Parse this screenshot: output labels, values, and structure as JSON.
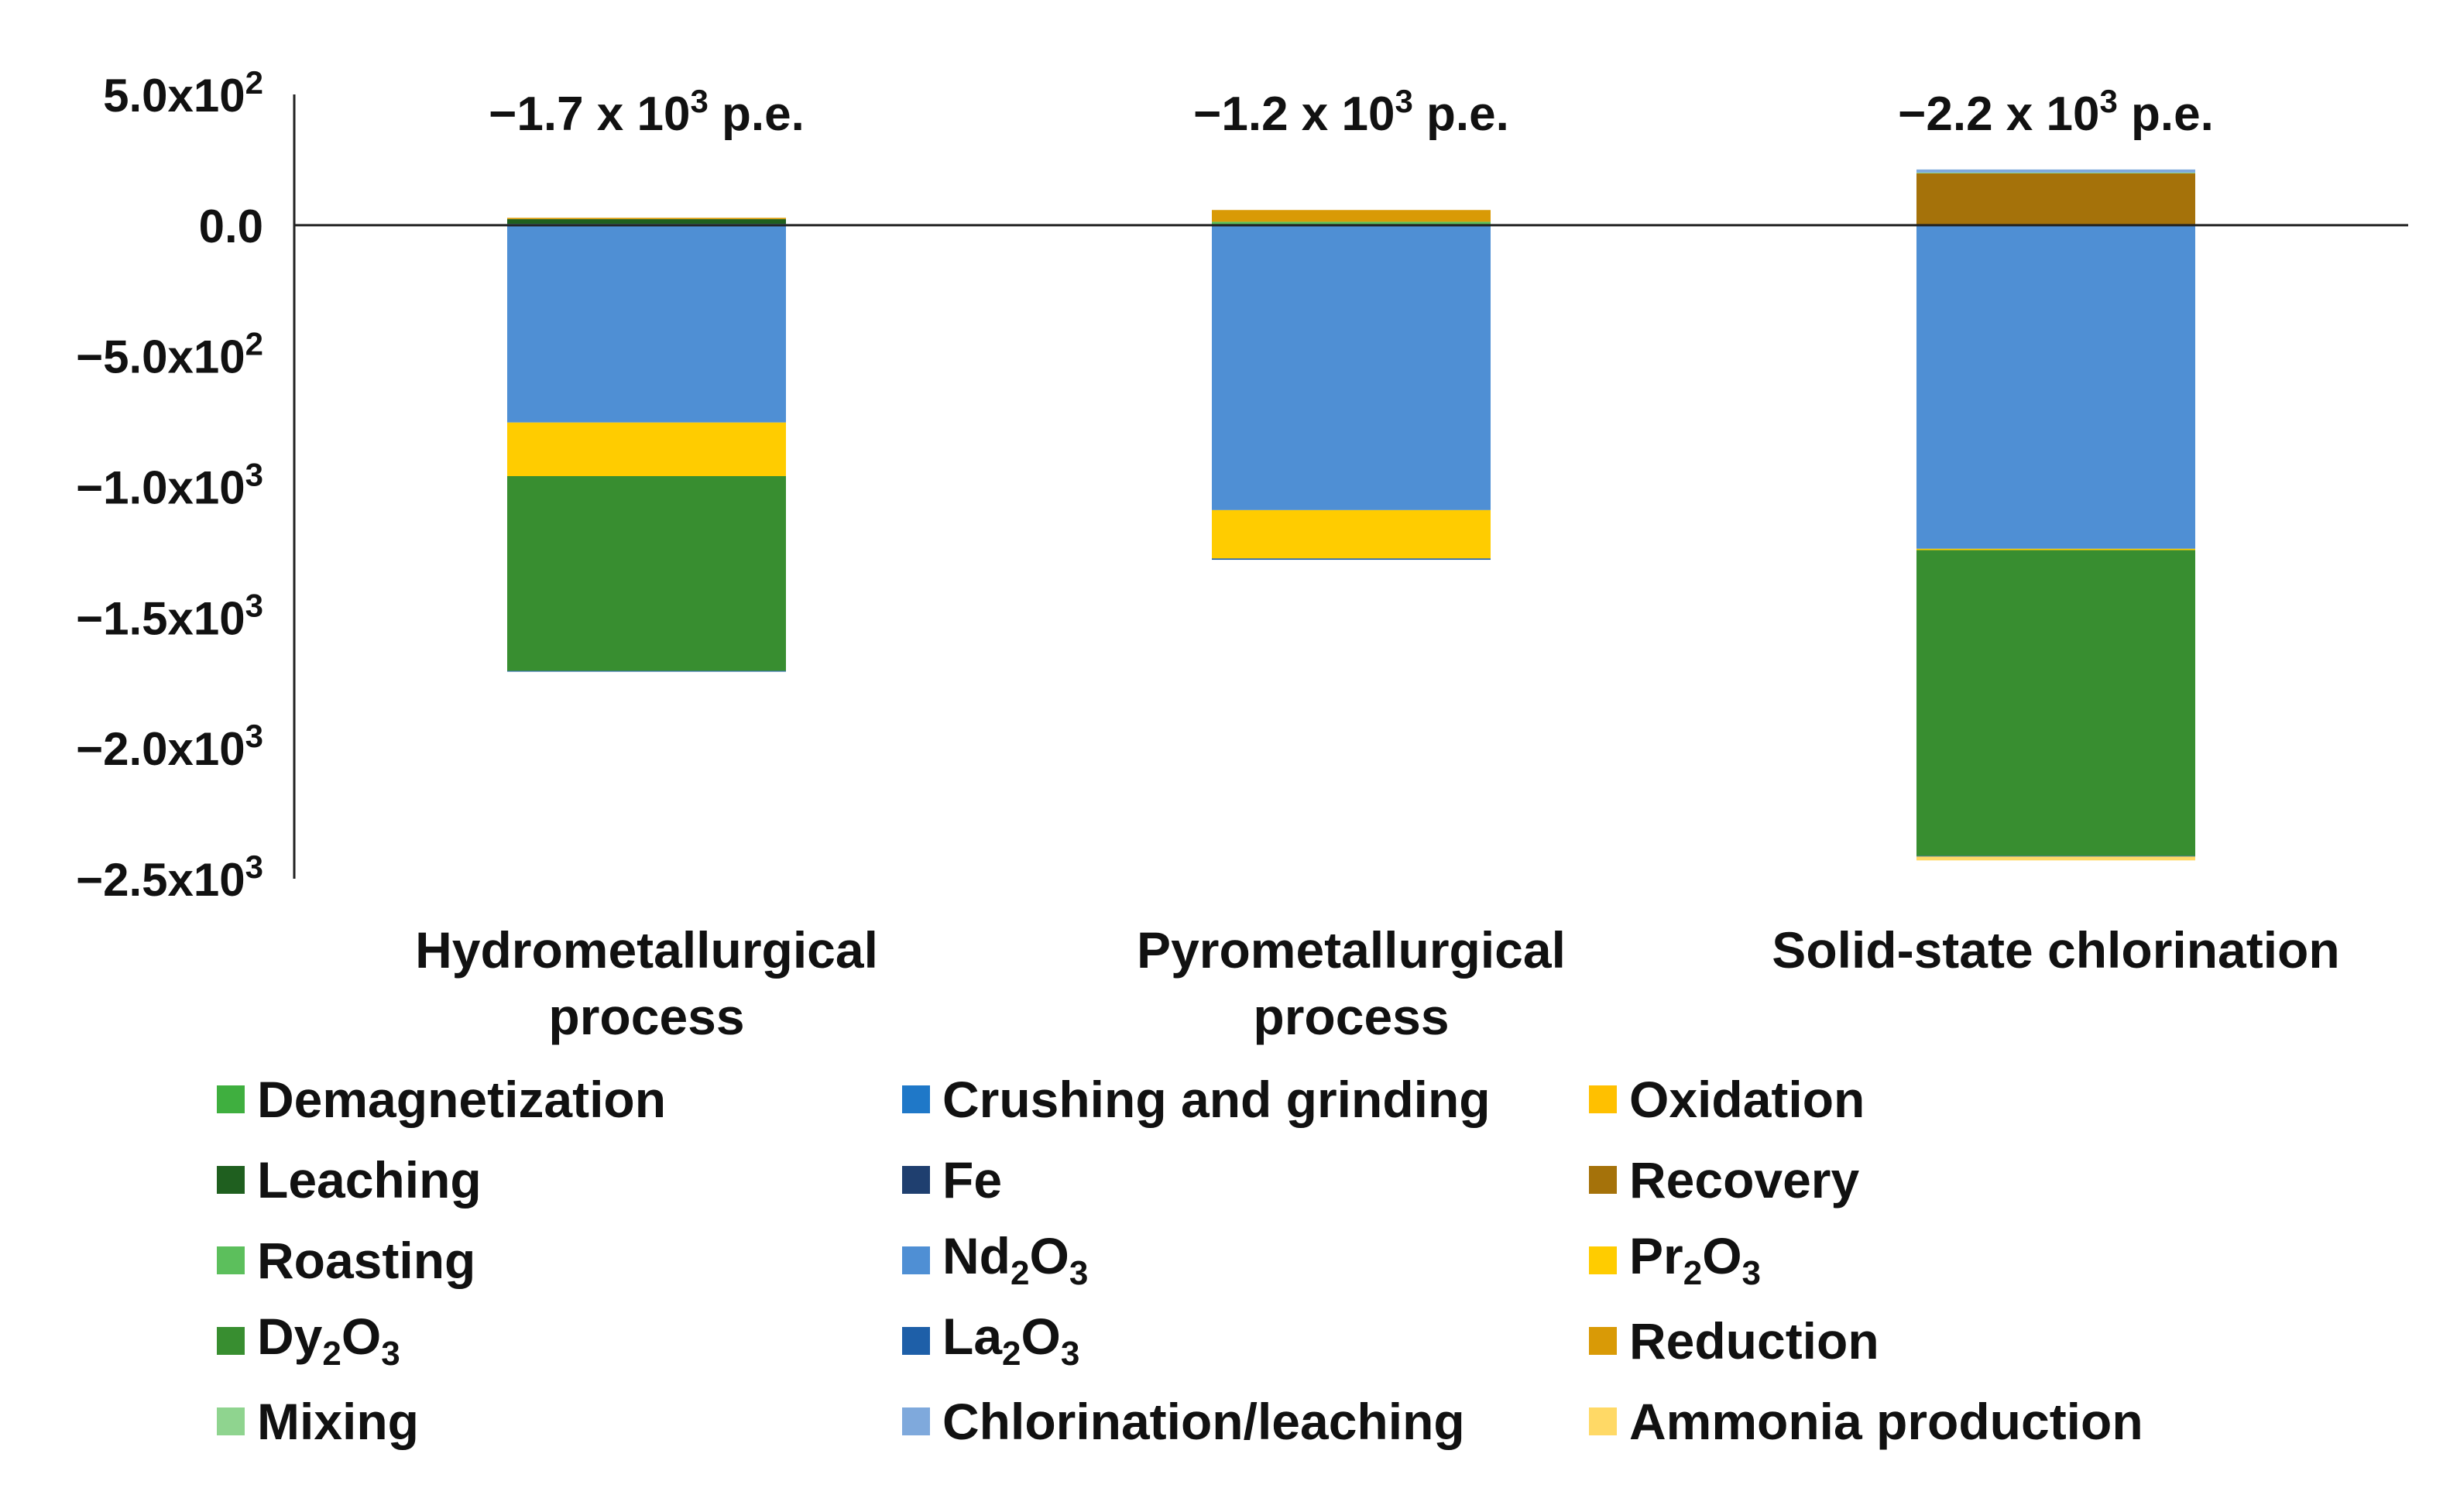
{
  "chart_data": {
    "type": "stacked-bar",
    "ylim": [
      -2500,
      500
    ],
    "y_ticks": [
      {
        "value": 500,
        "label": "5.0x10",
        "exp": "2"
      },
      {
        "value": 0,
        "label": "0.0",
        "exp": ""
      },
      {
        "value": -500,
        "label": "−5.0x10",
        "exp": "2"
      },
      {
        "value": -1000,
        "label": "−1.0x10",
        "exp": "3"
      },
      {
        "value": -1500,
        "label": "−1.5x10",
        "exp": "3"
      },
      {
        "value": -2000,
        "label": "−2.0x10",
        "exp": "3"
      },
      {
        "value": -2500,
        "label": "−2.5x10",
        "exp": "3"
      }
    ],
    "categories": [
      {
        "lines": [
          "Hydrometallurgical",
          "process"
        ],
        "total": {
          "prefix": "−1.7 x 10",
          "exp": "3",
          "suffix": " p.e."
        }
      },
      {
        "lines": [
          "Pyrometallurgical",
          "process"
        ],
        "total": {
          "prefix": "−1.2 x 10",
          "exp": "3",
          "suffix": " p.e."
        }
      },
      {
        "lines": [
          "Solid-state chlorination"
        ],
        "total": {
          "prefix": "−2.2 x 10",
          "exp": "3",
          "suffix": " p.e."
        }
      }
    ],
    "series": [
      {
        "name": "Demagnetization",
        "color": "#3FAF3F",
        "values": [
          2,
          0,
          0
        ]
      },
      {
        "name": "Crushing and grinding",
        "color": "#1F78C8",
        "values": [
          3,
          3,
          3
        ]
      },
      {
        "name": "Oxidation",
        "color": "#FFC000",
        "values": [
          0,
          0,
          0
        ]
      },
      {
        "name": "Leaching",
        "color": "#1F5F1F",
        "values": [
          18,
          0,
          0
        ]
      },
      {
        "name": "Fe",
        "color": "#1F3F6F",
        "values": [
          -5,
          -5,
          -3
        ]
      },
      {
        "name": "Recovery",
        "color": "#A5720A",
        "values": [
          0,
          0,
          195
        ]
      },
      {
        "name": "Roasting",
        "color": "#5CBF5C",
        "values": [
          0,
          10,
          0
        ]
      },
      {
        "name": "Nd2O3",
        "color": "#4F8FD4",
        "values": [
          -750,
          -1085,
          -1235
        ]
      },
      {
        "name": "Pr2O3",
        "color": "#FFCC00",
        "values": [
          -205,
          -185,
          -5
        ]
      },
      {
        "name": "Dy2O3",
        "color": "#388E30",
        "values": [
          -745,
          0,
          -1170
        ]
      },
      {
        "name": "La2O3",
        "color": "#1E5FA8",
        "values": [
          -3,
          -5,
          -2
        ]
      },
      {
        "name": "Reduction",
        "color": "#D99A06",
        "values": [
          5,
          45,
          0
        ]
      },
      {
        "name": "Mixing",
        "color": "#8FD48F",
        "values": [
          0,
          0,
          3
        ]
      },
      {
        "name": "Chlorination/leaching",
        "color": "#7FA9DC",
        "values": [
          0,
          0,
          12
        ]
      },
      {
        "name": "Ammonia production",
        "color": "#FFD966",
        "values": [
          0,
          0,
          -15
        ]
      }
    ]
  },
  "legend": [
    {
      "text": "Demagnetization",
      "sub": "",
      "post": "",
      "color": "#3FAF3F"
    },
    {
      "text": "Crushing and grinding",
      "sub": "",
      "post": "",
      "color": "#1F78C8"
    },
    {
      "text": "Oxidation",
      "sub": "",
      "post": "",
      "color": "#FFC000"
    },
    {
      "text": "Leaching",
      "sub": "",
      "post": "",
      "color": "#1F5F1F"
    },
    {
      "text": "Fe",
      "sub": "",
      "post": "",
      "color": "#1F3F6F"
    },
    {
      "text": "Recovery",
      "sub": "",
      "post": "",
      "color": "#A5720A"
    },
    {
      "text": "Roasting",
      "sub": "",
      "post": "",
      "color": "#5CBF5C"
    },
    {
      "text": "Nd",
      "sub": "2",
      "post": "O",
      "sub2": "3",
      "color": "#4F8FD4"
    },
    {
      "text": "Pr",
      "sub": "2",
      "post": "O",
      "sub2": "3",
      "color": "#FFCC00"
    },
    {
      "text": "Dy",
      "sub": "2",
      "post": "O",
      "sub2": "3",
      "color": "#388E30"
    },
    {
      "text": "La",
      "sub": "2",
      "post": "O",
      "sub2": "3",
      "color": "#1E5FA8"
    },
    {
      "text": "Reduction",
      "sub": "",
      "post": "",
      "color": "#D99A06"
    },
    {
      "text": "Mixing",
      "sub": "",
      "post": "",
      "color": "#8FD48F"
    },
    {
      "text": "Chlorination/leaching",
      "sub": "",
      "post": "",
      "color": "#7FA9DC"
    },
    {
      "text": "Ammonia production",
      "sub": "",
      "post": "",
      "color": "#FFD966"
    }
  ]
}
